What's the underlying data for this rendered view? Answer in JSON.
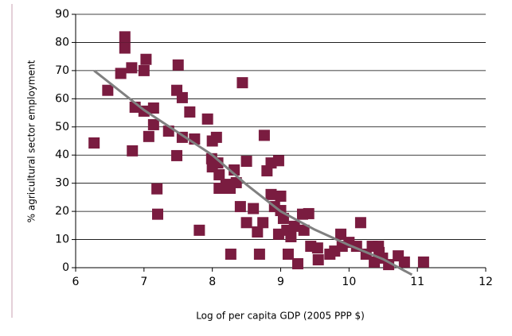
{
  "chart_data": {
    "type": "scatter",
    "x_label": "Log of per capita GDP (2005 PPP $)",
    "y_label": "% agricultural sector employment",
    "xlim": [
      6,
      12
    ],
    "xticks": [
      6,
      7,
      8,
      9,
      10,
      11,
      12
    ],
    "ylim": [
      0,
      90
    ],
    "yticks": [
      0,
      10,
      20,
      30,
      40,
      50,
      60,
      70,
      80,
      90
    ],
    "grid": true,
    "points": {
      "color": "#7a1c40",
      "x": [
        6.27,
        6.47,
        6.72,
        6.72,
        6.66,
        6.82,
        7.03,
        7.0,
        6.87,
        6.83,
        7.0,
        7.14,
        7.14,
        7.07,
        7.19,
        7.2,
        7.5,
        7.48,
        7.56,
        7.67,
        7.36,
        7.48,
        7.74,
        7.56,
        7.81,
        7.93,
        8.0,
        8.06,
        7.99,
        8.0,
        8.08,
        8.1,
        8.1,
        8.2,
        8.26,
        8.35,
        8.32,
        8.5,
        8.44,
        8.27,
        8.41,
        8.5,
        8.6,
        8.66,
        8.69,
        8.74,
        8.76,
        8.8,
        8.86,
        8.97,
        8.86,
        8.91,
        9.0,
        9.0,
        9.04,
        8.97,
        9.09,
        9.11,
        9.15,
        9.2,
        9.25,
        9.32,
        9.41,
        9.34,
        9.44,
        9.54,
        9.55,
        9.79,
        9.88,
        9.9,
        10.0,
        10.11,
        10.17,
        10.25,
        10.34,
        10.37,
        10.43,
        10.49,
        10.58,
        10.72,
        10.81,
        11.09,
        9.72,
        10.44
      ],
      "y": [
        44.3,
        63,
        82,
        78,
        69,
        71,
        74,
        70,
        57,
        41.5,
        55.6,
        56.7,
        50.8,
        46.6,
        28,
        19,
        72,
        63,
        60.4,
        55.3,
        48.5,
        39.8,
        45.7,
        46.3,
        13.3,
        52.8,
        45,
        46.3,
        38.7,
        35.8,
        37.2,
        33,
        28.2,
        29.6,
        28.2,
        30.2,
        34.7,
        37.8,
        65.7,
        4.8,
        21.7,
        16,
        21,
        12.7,
        4.8,
        16,
        47,
        34.4,
        37.2,
        38,
        26,
        21.7,
        25.4,
        20.3,
        17.5,
        11.9,
        13.3,
        4.8,
        11,
        14.7,
        1.4,
        19,
        19.2,
        13.3,
        7.6,
        7,
        2.8,
        5.9,
        11.9,
        7.6,
        9,
        7.6,
        16,
        4.8,
        7.6,
        2,
        7.6,
        3.4,
        1.1,
        4.2,
        2,
        2,
        4.8,
        5.4
      ]
    },
    "trend": {
      "color": "#808080",
      "x": [
        6.27,
        7,
        7.5,
        8,
        8.5,
        9,
        9.5,
        10,
        10.5,
        10.92
      ],
      "y": [
        70,
        56,
        48,
        40,
        29.5,
        20,
        13.5,
        8,
        3,
        -2.5
      ]
    }
  }
}
